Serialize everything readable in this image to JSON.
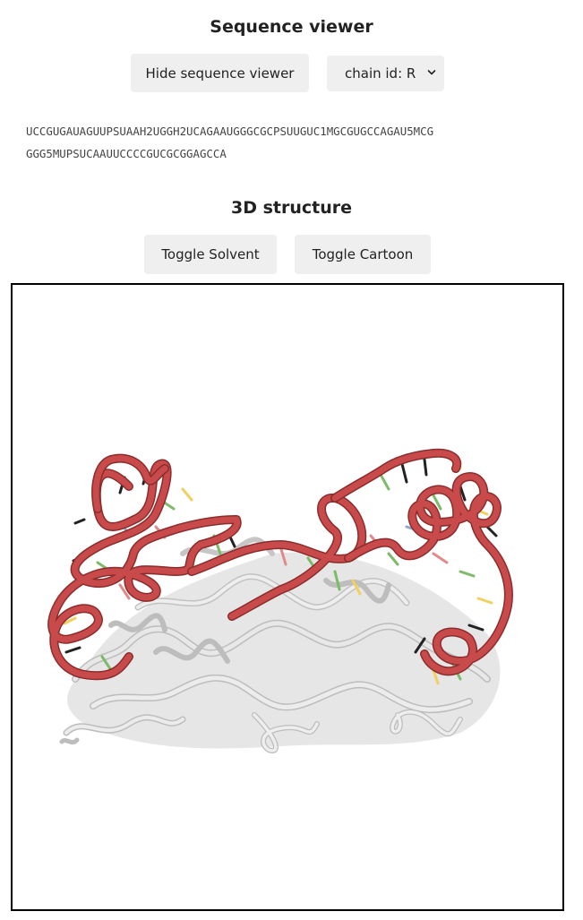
{
  "sequence_viewer": {
    "title": "Sequence viewer",
    "hide_button_label": "Hide sequence viewer",
    "chain_select": {
      "selected": "chain id: R",
      "icon": "chevron-down-icon"
    },
    "sequence_lines": [
      "UCCGUGAUAGUUPSUAAH2UGGH2UCAGAAUGGGCGCPSUUGUC1MGCGUGCCAGAU5MCG",
      "GGG5MUPSUCAAUUCCCCGUCGCGGAGCCA"
    ]
  },
  "structure": {
    "title": "3D structure",
    "toggle_solvent_label": "Toggle Solvent",
    "toggle_cartoon_label": "Toggle Cartoon"
  },
  "colors": {
    "button_bg": "#efefef",
    "rna_ribbon": "#c94a4a",
    "protein_ribbon": "#d9d9d9",
    "viewer_border": "#000000"
  }
}
